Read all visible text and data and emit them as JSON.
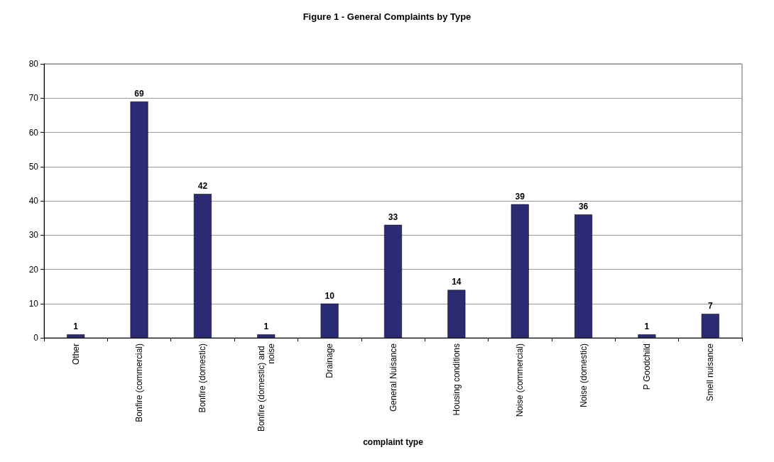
{
  "chart_data": {
    "type": "bar",
    "title": "Figure 1 - General Complaints by Type",
    "xlabel": "complaint type",
    "categories": [
      "Other",
      "Bonfire (commercial)",
      "Bonfire (domestic)",
      "Bonfire (domestic) and noise",
      "Drainage",
      "General Nuisance",
      "Housing conditions",
      "Noise (commercial)",
      "Noise (domestic)",
      "P Goodchild",
      "Smell nuisance"
    ],
    "values": [
      1,
      69,
      42,
      1,
      10,
      33,
      14,
      39,
      36,
      1,
      7
    ],
    "color": "#2b2b73",
    "ylim": [
      0,
      80
    ],
    "yticks": [
      0,
      10,
      20,
      30,
      40,
      50,
      60,
      70,
      80
    ],
    "grid": "y",
    "data_labels": true
  }
}
